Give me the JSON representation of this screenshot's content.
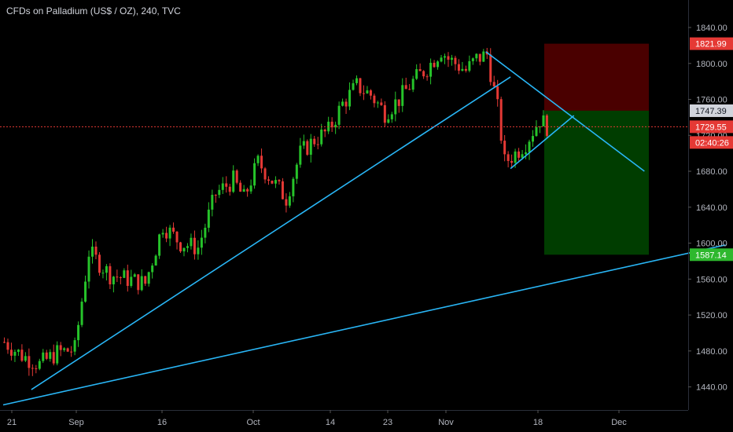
{
  "header": {
    "title": "CFDs on Palladium (US$ / OZ), 240, TVC"
  },
  "colors": {
    "background": "#000000",
    "up_candle": "#26c32a",
    "down_candle": "#e53935",
    "trendline": "#29b6f6",
    "axis_text": "#b2b5be",
    "stop_zone": "#4a0000",
    "target_zone": "#003d00",
    "last_price_tag": "#e53935",
    "target_tag": "#2eb82e"
  },
  "chart_data": {
    "type": "candlestick",
    "symbol": "CFDs on Palladium (US$ / OZ)",
    "interval": "240",
    "source": "TVC",
    "y_ticks": [
      1440,
      1480,
      1520,
      1560,
      1600,
      1640,
      1680,
      1720,
      1760,
      1800,
      1840
    ],
    "y_tick_labels": [
      "1440.00",
      "1480.00",
      "1520.00",
      "1560.00",
      "1600.00",
      "1640.00",
      "1680.00",
      "1720.00",
      "1760.00",
      "1800.00",
      "1840.00"
    ],
    "x_tick_labels": [
      "21",
      "Sep",
      "16",
      "Oct",
      "14",
      "23",
      "Nov",
      "18",
      "Dec"
    ],
    "price_tags": {
      "stop": {
        "label": "1821.99",
        "value": 1821.99
      },
      "entry": {
        "label": "1747.39",
        "value": 1747.39
      },
      "last": {
        "label": "1729.55",
        "value": 1729.55
      },
      "countdown": {
        "label": "02:40:26"
      },
      "target": {
        "label": "1587.14",
        "value": 1587.14
      }
    },
    "close_path": [
      [
        0,
        1490
      ],
      [
        5,
        1475
      ],
      [
        10,
        1465
      ],
      [
        15,
        1478
      ],
      [
        20,
        1482
      ],
      [
        24,
        1590
      ],
      [
        30,
        1565
      ],
      [
        35,
        1560
      ],
      [
        40,
        1555
      ],
      [
        45,
        1620
      ],
      [
        50,
        1600
      ],
      [
        55,
        1595
      ],
      [
        60,
        1655
      ],
      [
        65,
        1670
      ],
      [
        68,
        1650
      ],
      [
        72,
        1690
      ],
      [
        77,
        1665
      ],
      [
        80,
        1650
      ],
      [
        84,
        1700
      ],
      [
        88,
        1715
      ],
      [
        92,
        1725
      ],
      [
        96,
        1755
      ],
      [
        100,
        1775
      ],
      [
        104,
        1765
      ],
      [
        108,
        1745
      ],
      [
        112,
        1760
      ],
      [
        116,
        1780
      ],
      [
        120,
        1795
      ],
      [
        124,
        1815
      ],
      [
        126,
        1805
      ],
      [
        128,
        1800
      ],
      [
        131,
        1792
      ],
      [
        134,
        1805
      ],
      [
        137,
        1810
      ],
      [
        140,
        1750
      ],
      [
        142,
        1690
      ],
      [
        145,
        1700
      ],
      [
        148,
        1712
      ],
      [
        152,
        1738
      ],
      [
        154,
        1730
      ]
    ],
    "trendlines": [
      {
        "name": "rising-support",
        "from": [
          8,
          1437
        ],
        "to": [
          144,
          1785
        ]
      },
      {
        "name": "long-term-support",
        "from": [
          0,
          1420
        ],
        "to": [
          205,
          1598
        ]
      },
      {
        "name": "falling-resistance",
        "from": [
          137,
          1813
        ],
        "to": [
          182,
          1680
        ]
      },
      {
        "name": "flag-support",
        "from": [
          144,
          1683
        ],
        "to": [
          162,
          1742
        ]
      }
    ],
    "position": {
      "type": "short",
      "entry": 1747.39,
      "stop": 1821.99,
      "target": 1587.14
    }
  }
}
